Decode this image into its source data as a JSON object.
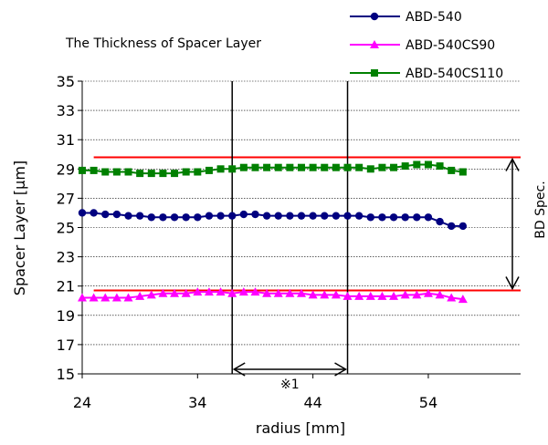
{
  "chart_data": {
    "type": "line",
    "title": "The Thickness of  Spacer Layer",
    "xlabel": "radius [mm]",
    "ylabel": "Spacer Layer [μm]",
    "xlim": [
      24,
      62
    ],
    "ylim": [
      15,
      35
    ],
    "xticks": [
      24,
      34,
      44,
      54
    ],
    "yticks": [
      15,
      17,
      19,
      21,
      23,
      25,
      27,
      29,
      31,
      33,
      35
    ],
    "grid": true,
    "legend_position": "top-right",
    "series": [
      {
        "name": "ABD-540",
        "color": "#000080",
        "marker": "circle",
        "x": [
          24,
          25,
          26,
          27,
          28,
          29,
          30,
          31,
          32,
          33,
          34,
          35,
          36,
          37,
          38,
          39,
          40,
          41,
          42,
          43,
          44,
          45,
          46,
          47,
          48,
          49,
          50,
          51,
          52,
          53,
          54,
          55,
          56,
          57
        ],
        "values": [
          26.0,
          26.0,
          25.9,
          25.9,
          25.8,
          25.8,
          25.7,
          25.7,
          25.7,
          25.7,
          25.7,
          25.8,
          25.8,
          25.8,
          25.9,
          25.9,
          25.8,
          25.8,
          25.8,
          25.8,
          25.8,
          25.8,
          25.8,
          25.8,
          25.8,
          25.7,
          25.7,
          25.7,
          25.7,
          25.7,
          25.7,
          25.4,
          25.1,
          25.1
        ]
      },
      {
        "name": "ABD-540CS90",
        "color": "#ff00ff",
        "marker": "triangle",
        "x": [
          24,
          25,
          26,
          27,
          28,
          29,
          30,
          31,
          32,
          33,
          34,
          35,
          36,
          37,
          38,
          39,
          40,
          41,
          42,
          43,
          44,
          45,
          46,
          47,
          48,
          49,
          50,
          51,
          52,
          53,
          54,
          55,
          56,
          57
        ],
        "values": [
          20.2,
          20.2,
          20.2,
          20.2,
          20.2,
          20.3,
          20.4,
          20.5,
          20.5,
          20.5,
          20.6,
          20.6,
          20.6,
          20.5,
          20.6,
          20.6,
          20.5,
          20.5,
          20.5,
          20.5,
          20.4,
          20.4,
          20.4,
          20.3,
          20.3,
          20.3,
          20.3,
          20.3,
          20.4,
          20.4,
          20.5,
          20.4,
          20.2,
          20.1
        ]
      },
      {
        "name": "ABD-540CS110",
        "color": "#008000",
        "marker": "square",
        "x": [
          24,
          25,
          26,
          27,
          28,
          29,
          30,
          31,
          32,
          33,
          34,
          35,
          36,
          37,
          38,
          39,
          40,
          41,
          42,
          43,
          44,
          45,
          46,
          47,
          48,
          49,
          50,
          51,
          52,
          53,
          54,
          55,
          56,
          57
        ],
        "values": [
          28.9,
          28.9,
          28.8,
          28.8,
          28.8,
          28.7,
          28.7,
          28.7,
          28.7,
          28.8,
          28.8,
          28.9,
          29.0,
          29.0,
          29.1,
          29.1,
          29.1,
          29.1,
          29.1,
          29.1,
          29.1,
          29.1,
          29.1,
          29.1,
          29.1,
          29.0,
          29.1,
          29.1,
          29.2,
          29.3,
          29.3,
          29.2,
          28.9,
          28.8
        ]
      }
    ],
    "reference_lines": [
      {
        "y": 29.8,
        "x_range": [
          25,
          62
        ],
        "color": "#ff0000"
      },
      {
        "y": 20.7,
        "x_range": [
          25,
          62
        ],
        "color": "#ff0000"
      }
    ],
    "vertical_lines": [
      {
        "x": 37
      },
      {
        "x": 47
      }
    ],
    "annotations": {
      "range_marker_label": "※1",
      "spec_label": "BD Spec."
    }
  }
}
